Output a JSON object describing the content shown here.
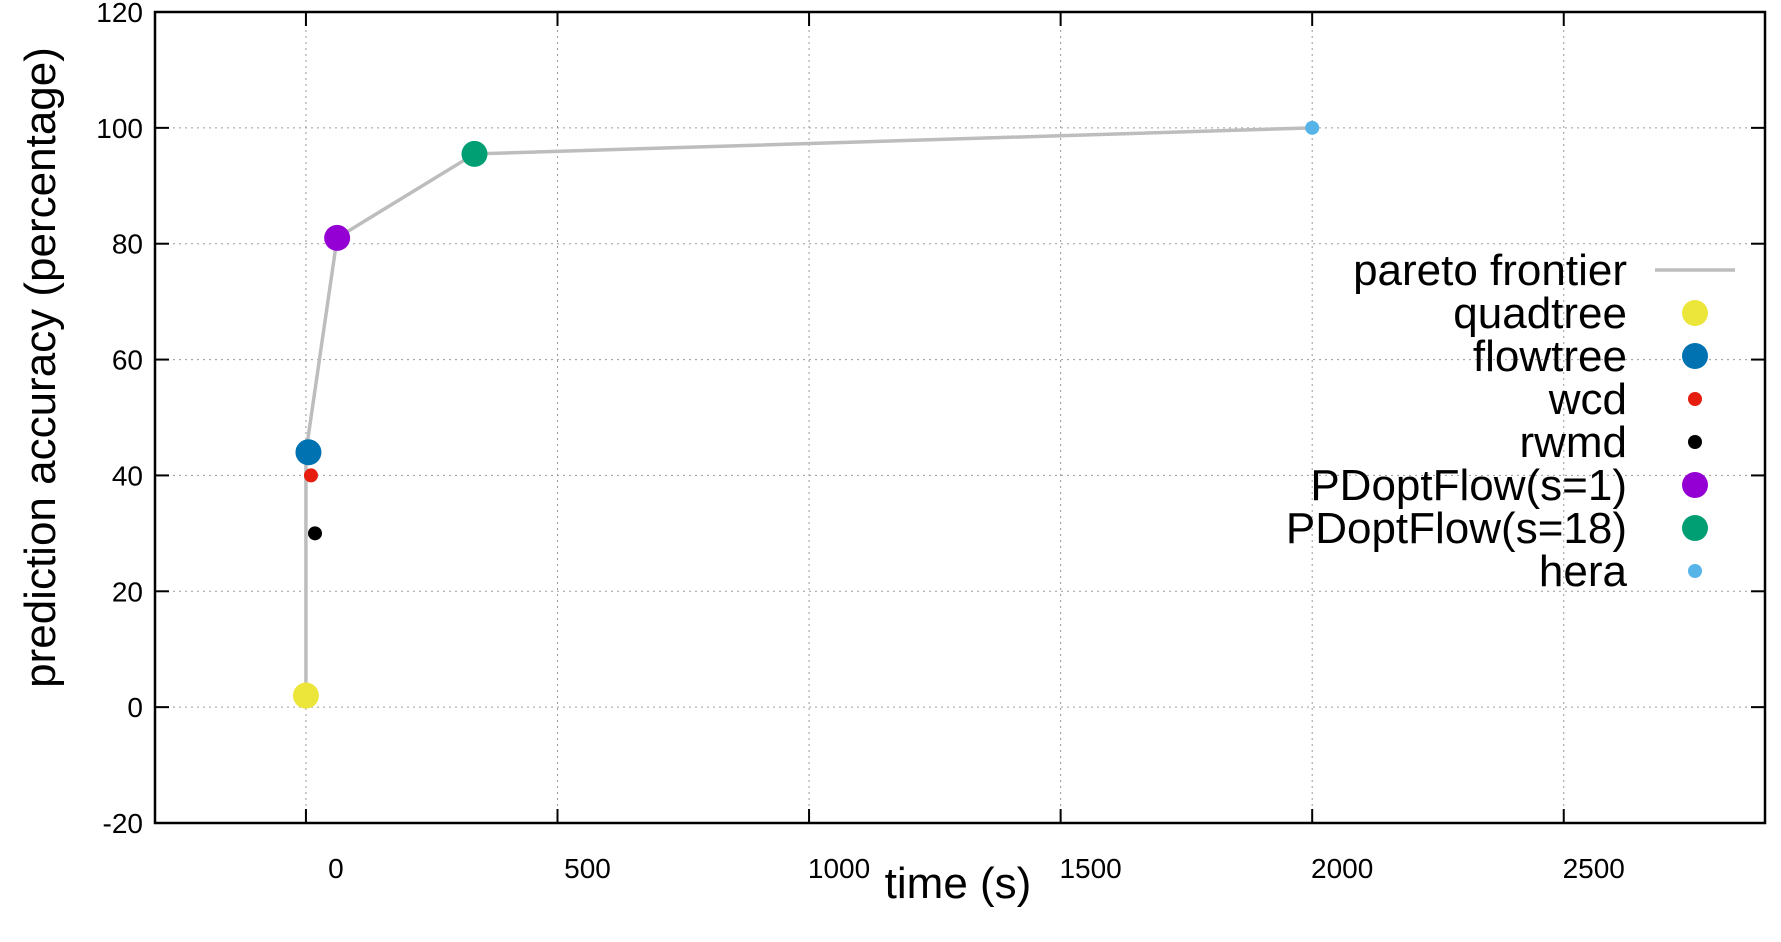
{
  "chart_data": {
    "type": "scatter",
    "xlabel": "time (s)",
    "ylabel": "prediction accuracy (percentage)",
    "xlim": [
      -300,
      2900
    ],
    "ylim": [
      -20,
      120
    ],
    "x_ticks": [
      0,
      500,
      1000,
      1500,
      2000,
      2500
    ],
    "x_tick_labels": [
      "0",
      "500",
      "1000",
      "1500",
      "2000",
      "2500"
    ],
    "y_ticks": [
      -20,
      0,
      20,
      40,
      60,
      80,
      100,
      120
    ],
    "y_tick_labels": [
      "-20",
      "0",
      "20",
      "40",
      "60",
      "80",
      "100",
      "120"
    ],
    "grid": true,
    "legend_position": "right",
    "series": [
      {
        "name": "pareto frontier",
        "kind": "line",
        "color": "#bdbdbd",
        "x": [
          0,
          0,
          62,
          335,
          2000
        ],
        "y": [
          2,
          44,
          81,
          95.5,
          100
        ]
      },
      {
        "name": "quadtree",
        "kind": "point",
        "size": "large",
        "color": "#ece63a",
        "x": [
          0
        ],
        "y": [
          2
        ]
      },
      {
        "name": "flowtree",
        "kind": "point",
        "size": "large",
        "color": "#0072b2",
        "x": [
          5
        ],
        "y": [
          44
        ]
      },
      {
        "name": "wcd",
        "kind": "point",
        "size": "small",
        "color": "#e51e10",
        "x": [
          10
        ],
        "y": [
          40
        ]
      },
      {
        "name": "rwmd",
        "kind": "point",
        "size": "small",
        "color": "#000000",
        "x": [
          18
        ],
        "y": [
          30
        ]
      },
      {
        "name": "PDoptFlow(s=1)",
        "kind": "point",
        "size": "large",
        "color": "#9400d3",
        "x": [
          62
        ],
        "y": [
          81
        ]
      },
      {
        "name": "PDoptFlow(s=18)",
        "kind": "point",
        "size": "large",
        "color": "#009e73",
        "x": [
          335
        ],
        "y": [
          95.5
        ]
      },
      {
        "name": "hera",
        "kind": "point",
        "size": "small",
        "color": "#56b4e9",
        "x": [
          2000
        ],
        "y": [
          100
        ]
      }
    ]
  }
}
